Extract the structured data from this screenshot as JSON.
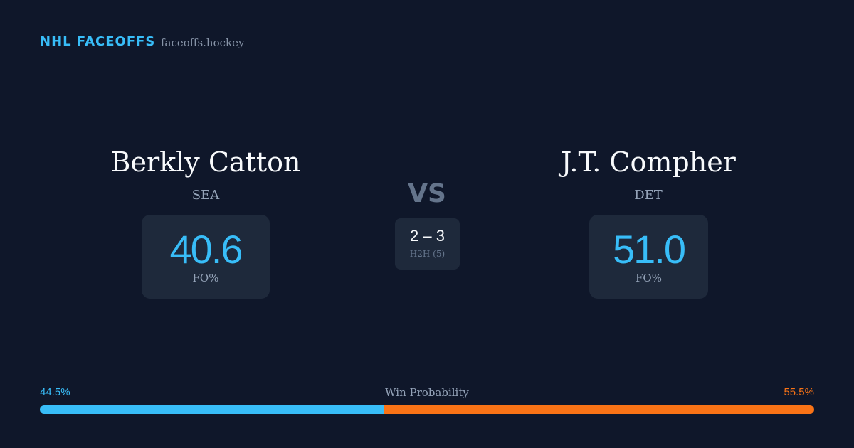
{
  "header": {
    "brand": "NHL FACEOFFS",
    "site": "faceoffs.hockey"
  },
  "players": [
    {
      "name": "Berkly Catton",
      "team": "SEA",
      "fo_pct": "40.6",
      "fo_label": "FO%"
    },
    {
      "name": "J.T. Compher",
      "team": "DET",
      "fo_pct": "51.0",
      "fo_label": "FO%"
    }
  ],
  "versus": {
    "label": "VS",
    "h2h_score": "2 – 3",
    "h2h_label": "H2H (5)"
  },
  "win_probability": {
    "label": "Win Probability",
    "values": [
      44.5,
      55.5
    ],
    "value_labels": [
      "44.5%",
      "55.5%"
    ],
    "colors": [
      "#38bdf8",
      "#f97316"
    ]
  }
}
